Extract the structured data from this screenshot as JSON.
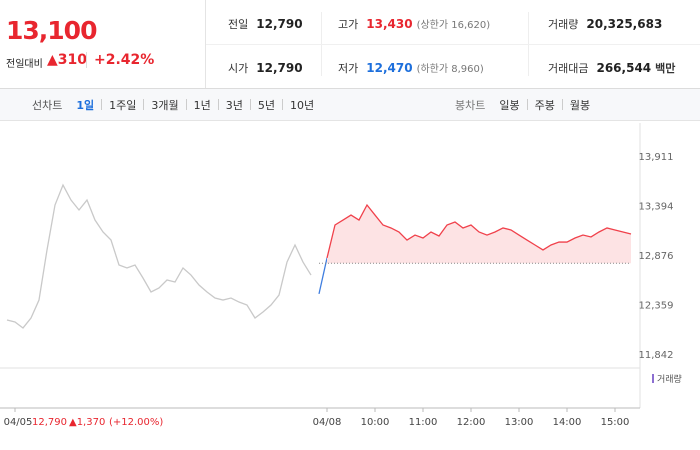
{
  "price_box": {
    "price": "13,100",
    "change_caption": "전일대비",
    "change": "▲310",
    "rate": "+2.42%"
  },
  "quote": [
    [
      {
        "label": "전일",
        "value": "12,790"
      },
      {
        "label": "고가",
        "value": "13,430",
        "note": "(상한가 16,620)"
      },
      {
        "label": "거래량",
        "value": "20,325,683"
      }
    ],
    [
      {
        "label": "시가",
        "value": "12,790"
      },
      {
        "label": "저가",
        "value": "12,470",
        "note": "(하한가 8,960)"
      },
      {
        "label": "거래대금",
        "value": "266,544",
        "unit": "백만"
      }
    ]
  ],
  "tabs": {
    "line_label": "선차트",
    "line_periods": [
      "1일",
      "1주일",
      "3개월",
      "1년",
      "3년",
      "5년",
      "10년"
    ],
    "candle_label": "봉차트",
    "candle_periods": [
      "일봉",
      "주봉",
      "월봉"
    ]
  },
  "chart_data": {
    "type": "line",
    "grid": false,
    "categories": [
      null,
      "04/05",
      null,
      null,
      null,
      null,
      null,
      null,
      null,
      null,
      null,
      null,
      null,
      null,
      null,
      null,
      null,
      null,
      null,
      null,
      null,
      null,
      null,
      null,
      null,
      null,
      null,
      null,
      null,
      null,
      null,
      null,
      null,
      null,
      null,
      null,
      null,
      null,
      null,
      null,
      "04/08",
      null,
      null,
      null,
      null,
      null,
      "10:00",
      null,
      null,
      null,
      null,
      null,
      "11:00",
      null,
      null,
      null,
      null,
      null,
      "12:00",
      null,
      null,
      null,
      null,
      null,
      "13:00",
      null,
      null,
      null,
      null,
      null,
      "14:00",
      null,
      null,
      null,
      null,
      null,
      "15:00",
      null,
      null
    ],
    "series": [
      {
        "color": "#c9c9c9",
        "values": [
          12197,
          12176,
          12114,
          12218,
          12406,
          12929,
          13399,
          13608,
          13451,
          13347,
          13451,
          13242,
          13117,
          13033,
          12772,
          12741,
          12772,
          12636,
          12490,
          12532,
          12615,
          12594,
          12741,
          12667,
          12563,
          12490,
          12427,
          12406,
          12427,
          12385,
          12354,
          12218,
          12281,
          12354,
          12458,
          12803,
          12981,
          12803,
          12667,
          null,
          null,
          null,
          null,
          null,
          null,
          null,
          null,
          null,
          null,
          null,
          null,
          null,
          null,
          null,
          null,
          null,
          null,
          null,
          null,
          null,
          null,
          null,
          null,
          null,
          null,
          null,
          null,
          null,
          null,
          null,
          null,
          null,
          null,
          null,
          null,
          null,
          null,
          null,
          null
        ]
      },
      {
        "color": "#3f7ee0",
        "values": [
          null,
          null,
          null,
          null,
          null,
          null,
          null,
          null,
          null,
          null,
          null,
          null,
          null,
          null,
          null,
          null,
          null,
          null,
          null,
          null,
          null,
          null,
          null,
          null,
          null,
          null,
          null,
          null,
          null,
          null,
          null,
          null,
          null,
          null,
          null,
          null,
          null,
          null,
          null,
          12470,
          12845,
          null,
          null,
          null,
          null,
          null,
          null,
          null,
          null,
          null,
          null,
          null,
          null,
          null,
          null,
          null,
          null,
          null,
          null,
          null,
          null,
          null,
          null,
          null,
          null,
          null,
          null,
          null,
          null,
          null,
          null,
          null,
          null,
          null,
          null,
          null,
          null,
          null,
          null
        ]
      },
      {
        "color": "#f0414b",
        "area_color": "#fde3e4",
        "values": [
          null,
          null,
          null,
          null,
          null,
          null,
          null,
          null,
          null,
          null,
          null,
          null,
          null,
          null,
          null,
          null,
          null,
          null,
          null,
          null,
          null,
          null,
          null,
          null,
          null,
          null,
          null,
          null,
          null,
          null,
          null,
          null,
          null,
          null,
          null,
          null,
          null,
          null,
          null,
          null,
          12845,
          13190,
          13242,
          13294,
          13242,
          13399,
          13294,
          13190,
          13159,
          13117,
          13033,
          13085,
          13054,
          13117,
          13075,
          13190,
          13221,
          13159,
          13190,
          13117,
          13085,
          13117,
          13159,
          13138,
          13085,
          13033,
          12981,
          12929,
          12981,
          13012,
          13012,
          13054,
          13085,
          13065,
          13117,
          13159,
          13138,
          13117,
          13096
        ]
      }
    ],
    "ylim": [
      11727,
      14256
    ],
    "yticks": [
      {
        "value": 11842,
        "label": "11,842"
      },
      {
        "value": 12359,
        "label": "12,359"
      },
      {
        "value": 12876,
        "label": "12,876"
      },
      {
        "value": 13394,
        "label": "13,394"
      },
      {
        "value": 13911,
        "label": "13,911"
      }
    ],
    "prev_close": {
      "value": 12790,
      "label": "12,790"
    },
    "prev_change": "▲1,370",
    "prev_rate": "(+12.00%)",
    "volume_label": "거래량"
  }
}
